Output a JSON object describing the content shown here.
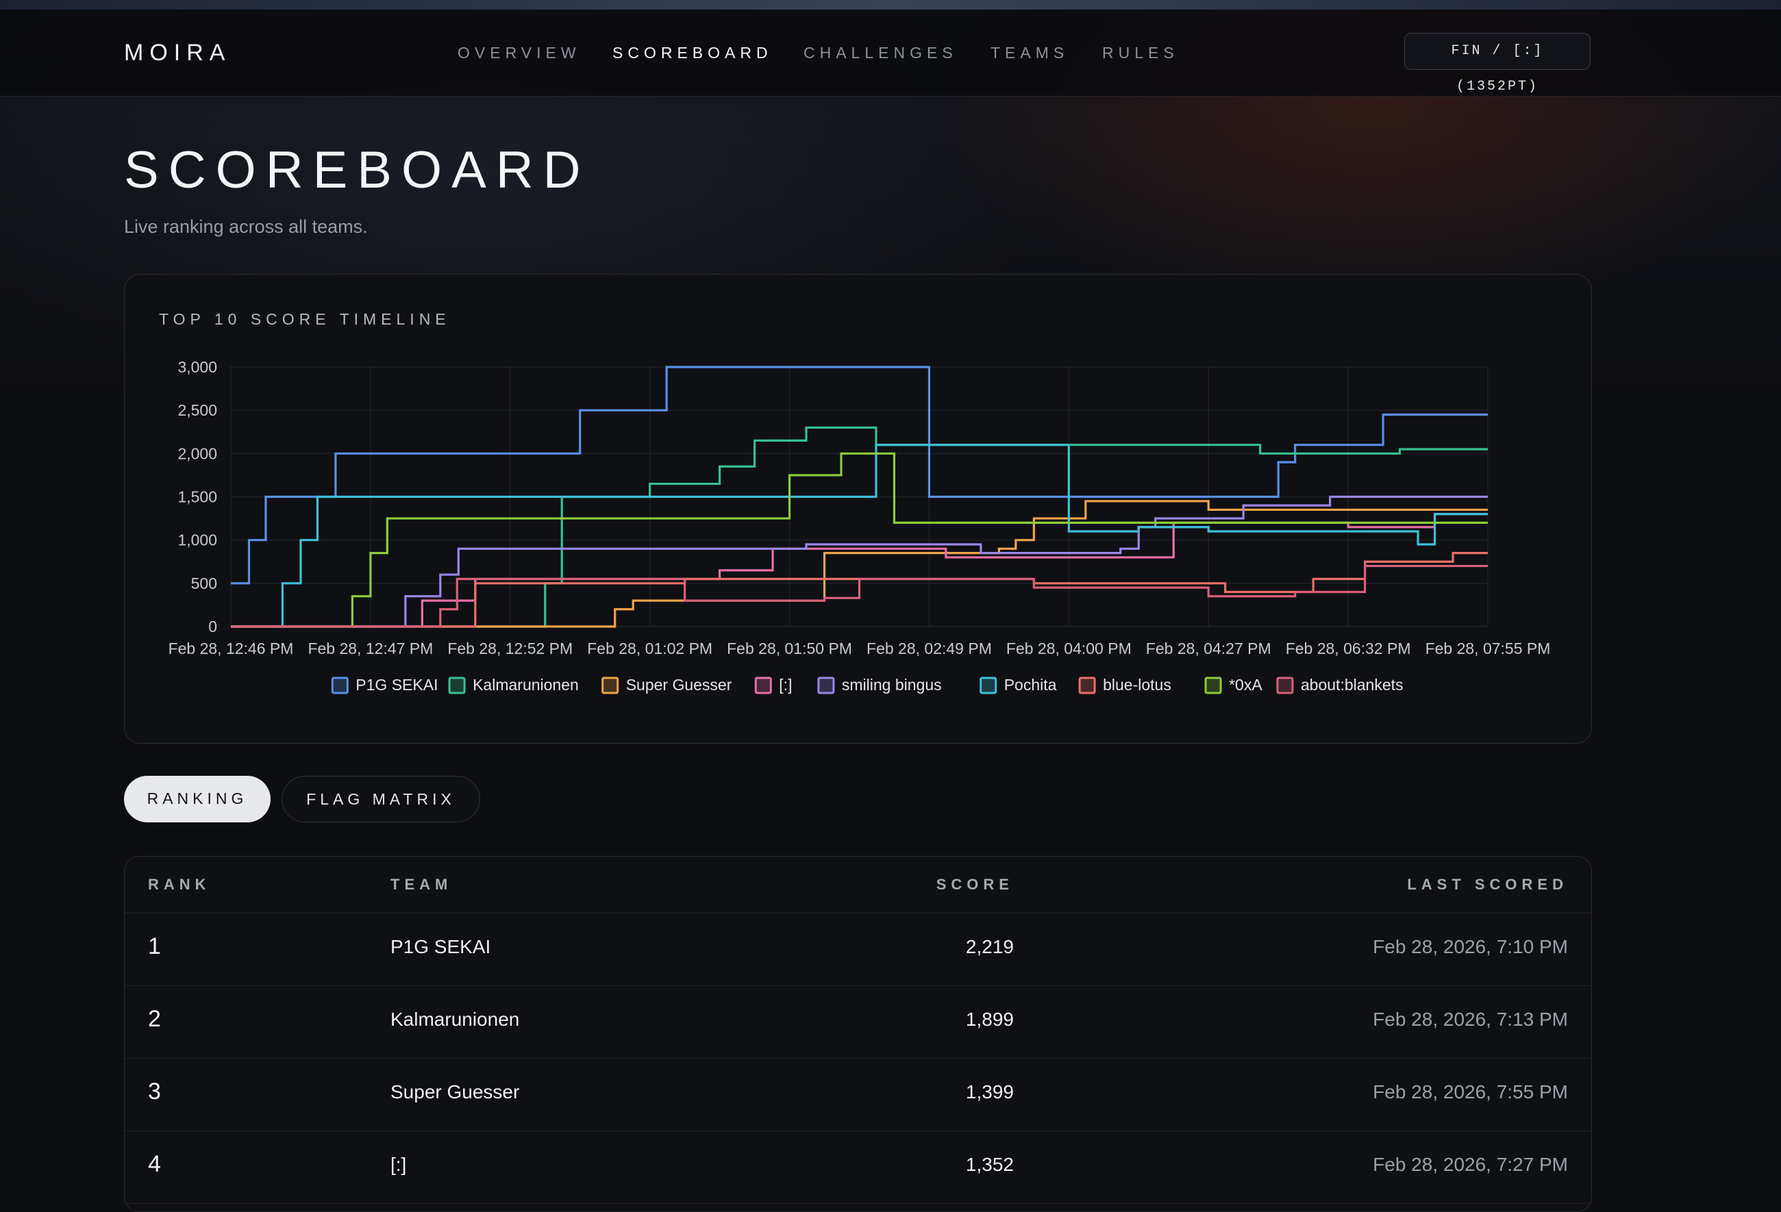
{
  "app": {
    "logo": "MOIRA"
  },
  "nav": {
    "items": [
      {
        "label": "OVERVIEW",
        "active": false
      },
      {
        "label": "SCOREBOARD",
        "active": true
      },
      {
        "label": "CHALLENGES",
        "active": false
      },
      {
        "label": "TEAMS",
        "active": false
      },
      {
        "label": "RULES",
        "active": false
      }
    ],
    "team_pill": "FIN / [:] (1352PT)"
  },
  "page": {
    "title": "SCOREBOARD",
    "subtitle": "Live ranking across all teams."
  },
  "chart_card": {
    "heading": "TOP 10 SCORE TIMELINE"
  },
  "tabs": [
    {
      "label": "RANKING",
      "active": true
    },
    {
      "label": "FLAG MATRIX",
      "active": false
    }
  ],
  "table": {
    "headers": {
      "rank": "RANK",
      "team": "TEAM",
      "score": "SCORE",
      "last_scored": "LAST SCORED"
    },
    "rows": [
      {
        "rank": "1",
        "team": "P1G SEKAI",
        "score": "2,219",
        "last_scored": "Feb 28, 2026, 7:10 PM"
      },
      {
        "rank": "2",
        "team": "Kalmarunionen",
        "score": "1,899",
        "last_scored": "Feb 28, 2026, 7:13 PM"
      },
      {
        "rank": "3",
        "team": "Super Guesser",
        "score": "1,399",
        "last_scored": "Feb 28, 2026, 7:55 PM"
      },
      {
        "rank": "4",
        "team": "[:]",
        "score": "1,352",
        "last_scored": "Feb 28, 2026, 7:27 PM"
      }
    ]
  },
  "colors": {
    "accent_bg": "#0d0e12",
    "grid": "#1f2128"
  },
  "chart_data": {
    "type": "line",
    "step": true,
    "grid": true,
    "legend_position": "bottom",
    "title": "",
    "xlabel": "",
    "ylabel": "",
    "ylim": [
      0,
      3000
    ],
    "yticks": [
      "3,000",
      "2,500",
      "2,000",
      "1,500",
      "1,000",
      "500",
      "0"
    ],
    "yticks_values": [
      3000,
      2500,
      2000,
      1500,
      1000,
      500,
      0
    ],
    "xticks": [
      "Feb 28, 12:46 PM",
      "Feb 28, 12:47 PM",
      "Feb 28, 12:52 PM",
      "Feb 28, 01:02 PM",
      "Feb 28, 01:50 PM",
      "Feb 28, 02:49 PM",
      "Feb 28, 04:00 PM",
      "Feb 28, 04:27 PM",
      "Feb 28, 06:32 PM",
      "Feb 28, 07:55 PM"
    ],
    "x_index_range": [
      0,
      9
    ],
    "series": [
      {
        "name": "P1G SEKAI",
        "color": "#5b8fe6",
        "points": [
          [
            0,
            500
          ],
          [
            0.13,
            1000
          ],
          [
            0.25,
            1500
          ],
          [
            0.75,
            2000
          ],
          [
            2.5,
            2500
          ],
          [
            3.12,
            3000
          ],
          [
            5,
            3000
          ],
          [
            5,
            1500
          ],
          [
            7.25,
            1500
          ],
          [
            7.5,
            1900
          ],
          [
            7.62,
            2100
          ],
          [
            8.25,
            2100
          ],
          [
            8.25,
            2450
          ],
          [
            9,
            2450
          ]
        ]
      },
      {
        "name": "Kalmarunionen",
        "color": "#36c290",
        "points": [
          [
            0,
            0
          ],
          [
            2.12,
            0
          ],
          [
            2.25,
            500
          ],
          [
            2.37,
            1000
          ],
          [
            2.37,
            1500
          ],
          [
            3,
            1500
          ],
          [
            3,
            1650
          ],
          [
            3.37,
            1650
          ],
          [
            3.5,
            1850
          ],
          [
            3.75,
            2150
          ],
          [
            4.12,
            2150
          ],
          [
            4.12,
            2300
          ],
          [
            4.62,
            2300
          ],
          [
            4.62,
            2100
          ],
          [
            7.37,
            2100
          ],
          [
            7.37,
            2000
          ],
          [
            8.37,
            2000
          ],
          [
            8.37,
            2050
          ],
          [
            9,
            2050
          ]
        ]
      },
      {
        "name": "Super Guesser",
        "color": "#f0a34a",
        "points": [
          [
            0,
            0
          ],
          [
            2.5,
            0
          ],
          [
            2.75,
            0
          ],
          [
            2.75,
            200
          ],
          [
            2.88,
            300
          ],
          [
            4.25,
            350
          ],
          [
            4.25,
            850
          ],
          [
            5.5,
            850
          ],
          [
            5.5,
            900
          ],
          [
            5.62,
            900
          ],
          [
            5.62,
            1000
          ],
          [
            5.75,
            1250
          ],
          [
            6.12,
            1250
          ],
          [
            6.12,
            1450
          ],
          [
            7,
            1450
          ],
          [
            7,
            1350
          ],
          [
            9,
            1350
          ]
        ]
      },
      {
        "name": "[:]",
        "color": "#e86fa8",
        "points": [
          [
            0,
            0
          ],
          [
            1.37,
            0
          ],
          [
            1.37,
            300
          ],
          [
            1.75,
            300
          ],
          [
            1.75,
            550
          ],
          [
            3.5,
            550
          ],
          [
            3.5,
            650
          ],
          [
            3.88,
            650
          ],
          [
            3.88,
            900
          ],
          [
            5.12,
            900
          ],
          [
            5.12,
            800
          ],
          [
            6.75,
            800
          ],
          [
            6.75,
            1200
          ],
          [
            8,
            1200
          ],
          [
            8,
            1150
          ],
          [
            8.62,
            1150
          ],
          [
            8.62,
            1300
          ],
          [
            9,
            1300
          ]
        ]
      },
      {
        "name": "smiling bingus",
        "color": "#9b86e8",
        "points": [
          [
            0,
            0
          ],
          [
            1.25,
            0
          ],
          [
            1.25,
            350
          ],
          [
            1.5,
            600
          ],
          [
            1.63,
            900
          ],
          [
            4.12,
            900
          ],
          [
            4.12,
            950
          ],
          [
            5.37,
            950
          ],
          [
            5.37,
            850
          ],
          [
            6.37,
            850
          ],
          [
            6.37,
            900
          ],
          [
            6.5,
            1150
          ],
          [
            6.62,
            1250
          ],
          [
            7.25,
            1250
          ],
          [
            7.25,
            1400
          ],
          [
            7.87,
            1400
          ],
          [
            7.87,
            1500
          ],
          [
            9,
            1500
          ]
        ]
      },
      {
        "name": "Pochita",
        "color": "#3fbfd9",
        "points": [
          [
            0,
            0
          ],
          [
            0.37,
            0
          ],
          [
            0.37,
            500
          ],
          [
            0.5,
            1000
          ],
          [
            0.62,
            1500
          ],
          [
            2.37,
            1500
          ],
          [
            3.12,
            1500
          ],
          [
            3.12,
            1500
          ],
          [
            4.62,
            2100
          ],
          [
            4.62,
            2100
          ],
          [
            6,
            2100
          ],
          [
            6,
            1100
          ],
          [
            6.5,
            1100
          ],
          [
            6.5,
            1150
          ],
          [
            7,
            1150
          ],
          [
            7,
            1100
          ],
          [
            8.5,
            1100
          ],
          [
            8.5,
            950
          ],
          [
            8.62,
            1300
          ],
          [
            9,
            1300
          ]
        ]
      },
      {
        "name": "blue-lotus",
        "color": "#ec6f6a",
        "points": [
          [
            0,
            0
          ],
          [
            1.75,
            0
          ],
          [
            1.75,
            500
          ],
          [
            3.25,
            500
          ],
          [
            3.25,
            550
          ],
          [
            4.5,
            550
          ],
          [
            4.5,
            550
          ],
          [
            5.75,
            550
          ],
          [
            5.75,
            500
          ],
          [
            7.12,
            500
          ],
          [
            7.12,
            400
          ],
          [
            7.75,
            400
          ],
          [
            7.75,
            550
          ],
          [
            8.12,
            550
          ],
          [
            8.12,
            750
          ],
          [
            8.75,
            750
          ],
          [
            8.75,
            850
          ],
          [
            9,
            850
          ]
        ]
      },
      {
        "name": "*0xA",
        "color": "#8fcc3a",
        "points": [
          [
            0,
            0
          ],
          [
            0.87,
            0
          ],
          [
            0.87,
            350
          ],
          [
            1,
            850
          ],
          [
            1.12,
            1250
          ],
          [
            4,
            1250
          ],
          [
            4,
            1750
          ],
          [
            4.37,
            1750
          ],
          [
            4.37,
            2000
          ],
          [
            4.75,
            2000
          ],
          [
            4.75,
            1200
          ],
          [
            6.5,
            1200
          ],
          [
            6.5,
            1200
          ],
          [
            9,
            1200
          ]
        ]
      },
      {
        "name": "about:blankets",
        "color": "#d9607a",
        "points": [
          [
            0,
            0
          ],
          [
            1.5,
            0
          ],
          [
            1.5,
            200
          ],
          [
            1.62,
            550
          ],
          [
            3.25,
            550
          ],
          [
            3.25,
            300
          ],
          [
            4.25,
            300
          ],
          [
            4.25,
            330
          ],
          [
            4.5,
            330
          ],
          [
            4.5,
            550
          ],
          [
            5.75,
            550
          ],
          [
            5.75,
            450
          ],
          [
            7,
            450
          ],
          [
            7,
            350
          ],
          [
            7.62,
            350
          ],
          [
            7.62,
            400
          ],
          [
            8.12,
            400
          ],
          [
            8.12,
            550
          ],
          [
            8.12,
            700
          ],
          [
            9,
            700
          ]
        ]
      }
    ]
  }
}
